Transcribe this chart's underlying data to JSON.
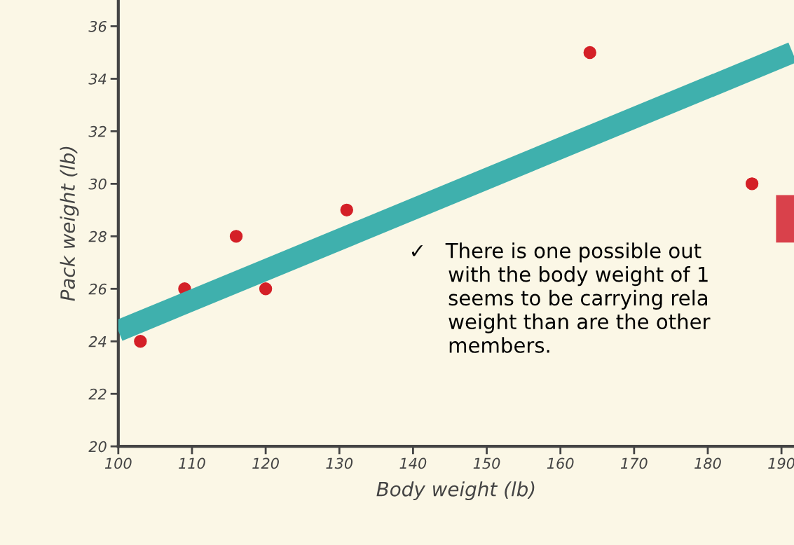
{
  "chart_data": {
    "type": "scatter",
    "xlabel": "Body weight (lb)",
    "ylabel": "Pack weight (lb)",
    "x": [
      103,
      109,
      116,
      120,
      131,
      164,
      186
    ],
    "series": [
      {
        "color": "#d42027",
        "marker": "circle",
        "values": [
          24,
          26,
          28,
          26,
          29,
          35,
          30
        ]
      },
      {
        "type": "line",
        "marker": "none",
        "color": "#3fb0ad",
        "x": [
          100,
          191.5
        ],
        "values": [
          24.4,
          35.0
        ]
      }
    ],
    "grid": false,
    "legend": false,
    "xlim": [
      100,
      191.7
    ],
    "ylim": [
      20,
      37
    ],
    "xticks": [
      100,
      110,
      120,
      130,
      140,
      150,
      160,
      170,
      180,
      190
    ],
    "yticks": [
      20,
      22,
      24,
      26,
      28,
      30,
      32,
      34,
      36
    ],
    "annotations": [
      "✓   There is one possible out\n      with the body weight of 1\n      seems to be carrying rela\n      weight than are the other\n      members."
    ]
  }
}
